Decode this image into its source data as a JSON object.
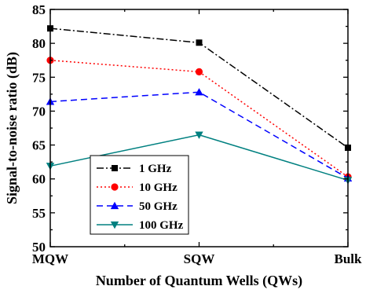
{
  "chart_data": {
    "type": "line",
    "xlabel": "Number of Quantum Wells (QWs)",
    "ylabel": "Signal-to-noise ratio (dB)",
    "categories": [
      "MQW",
      "SQW",
      "Bulk"
    ],
    "ylim": [
      50,
      85
    ],
    "yticks": [
      50,
      55,
      60,
      65,
      70,
      75,
      80,
      85
    ],
    "grid": false,
    "legend_position": "bottom-left",
    "series": [
      {
        "name": "1 GHz",
        "values": [
          82.2,
          80.1,
          64.6
        ],
        "color": "#000000",
        "marker": "square",
        "line_style": "dash-dot"
      },
      {
        "name": "10 GHz",
        "values": [
          77.5,
          75.8,
          60.3
        ],
        "color": "#ff0000",
        "marker": "circle",
        "line_style": "dotted"
      },
      {
        "name": "50 GHz",
        "values": [
          71.4,
          72.8,
          60.1
        ],
        "color": "#0000ff",
        "marker": "triangle-up",
        "line_style": "dashed"
      },
      {
        "name": "100 GHz",
        "values": [
          61.9,
          66.5,
          59.8
        ],
        "color": "#008080",
        "marker": "triangle-down",
        "line_style": "solid"
      }
    ]
  }
}
